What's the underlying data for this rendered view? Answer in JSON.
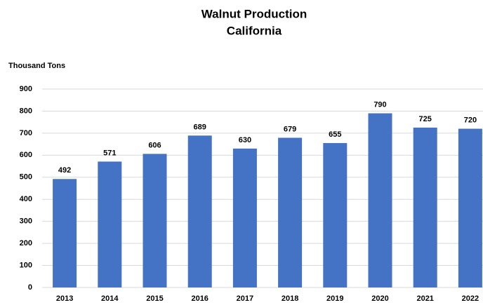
{
  "chart_data": {
    "type": "bar",
    "title": "Walnut Production",
    "subtitle": "California",
    "y_label": "Thousand Tons",
    "categories": [
      "2013",
      "2014",
      "2015",
      "2016",
      "2017",
      "2018",
      "2019",
      "2020",
      "2021",
      "2022"
    ],
    "values": [
      492,
      571,
      606,
      689,
      630,
      679,
      655,
      790,
      725,
      720
    ],
    "color": "#4472c4",
    "ylim": [
      0,
      900
    ],
    "yticks": [
      0,
      100,
      200,
      300,
      400,
      500,
      600,
      700,
      800,
      900
    ],
    "grid": true
  }
}
